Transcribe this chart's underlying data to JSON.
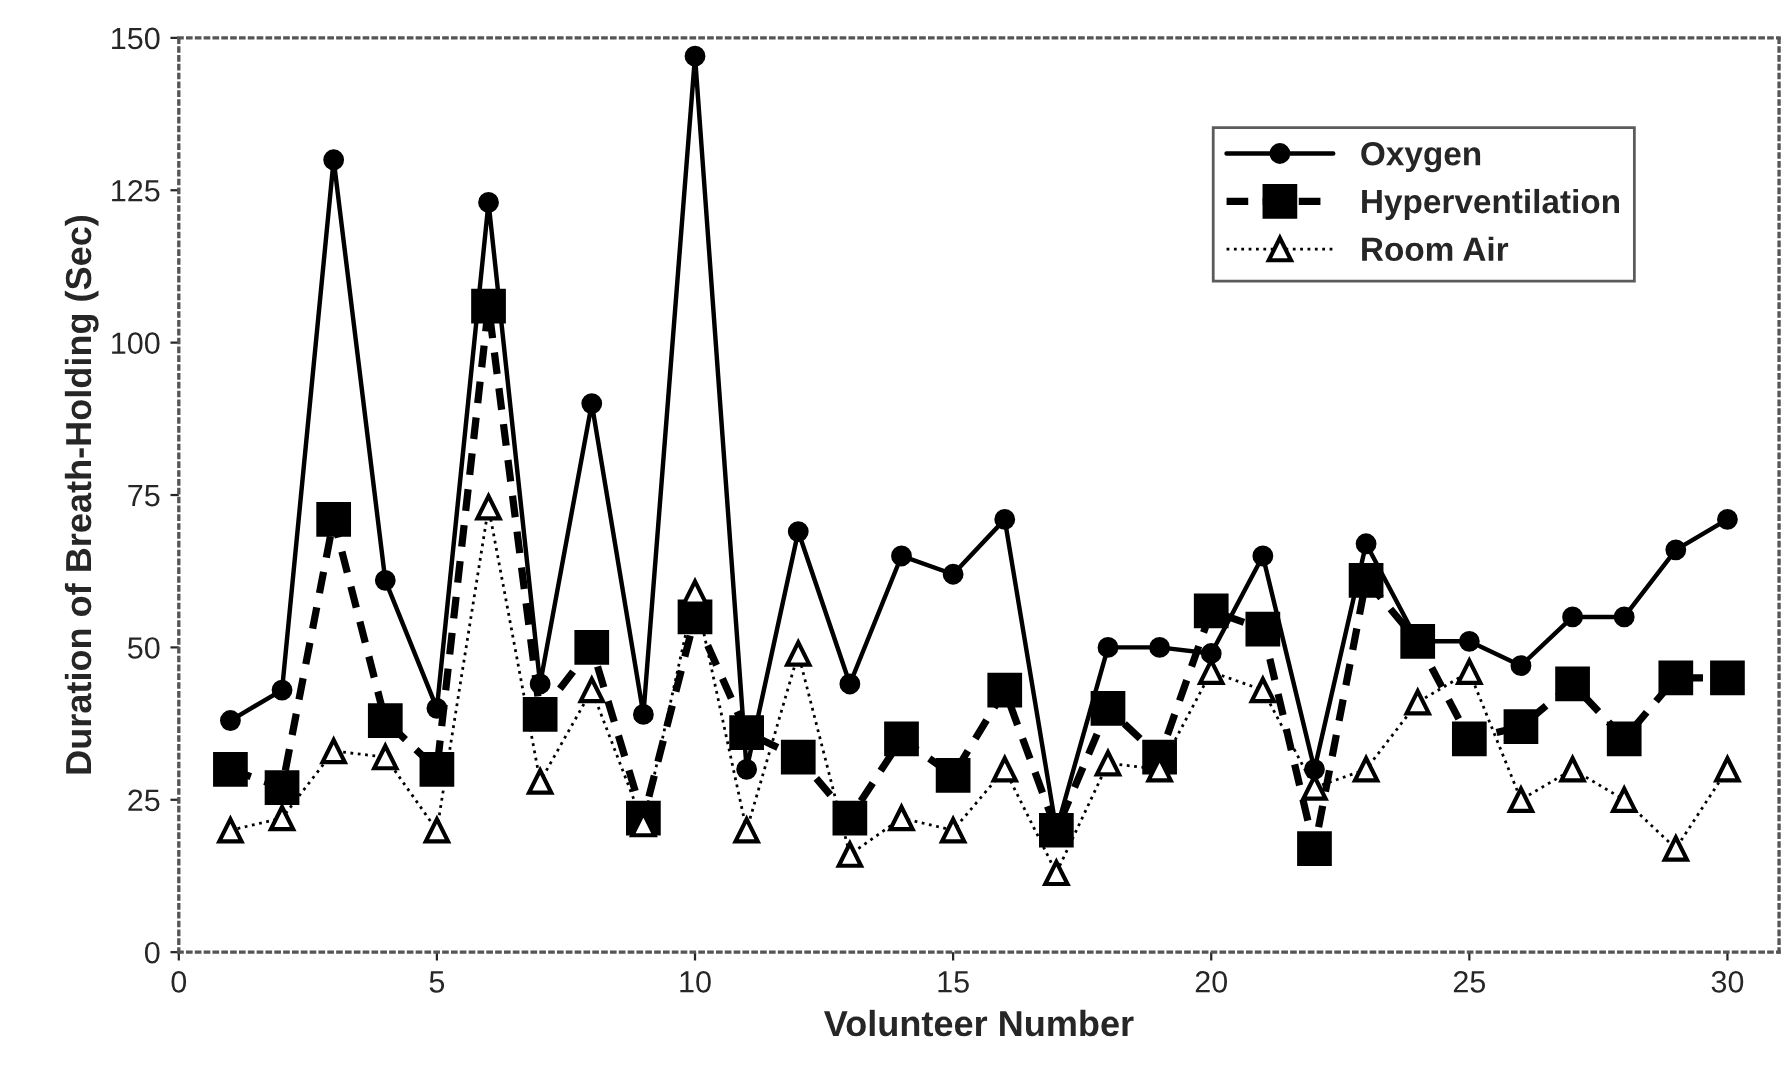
{
  "chart_data": {
    "type": "line",
    "xlabel": "Volunteer Number",
    "ylabel": "Duration of Breath-Holding (Sec)",
    "x": [
      1,
      2,
      3,
      4,
      5,
      6,
      7,
      8,
      9,
      10,
      11,
      12,
      13,
      14,
      15,
      16,
      17,
      18,
      19,
      20,
      21,
      22,
      23,
      24,
      25,
      26,
      27,
      28,
      29,
      30
    ],
    "series": [
      {
        "name": "Oxygen",
        "color": "#000000",
        "marker": "circle",
        "line_style": "solid",
        "values": [
          38,
          43,
          130,
          61,
          40,
          123,
          44,
          90,
          39,
          147,
          30,
          69,
          44,
          65,
          62,
          71,
          20,
          50,
          50,
          49,
          65,
          30,
          67,
          51,
          51,
          47,
          55,
          55,
          66,
          71
        ]
      },
      {
        "name": "Hyperventilation",
        "color": "#000000",
        "marker": "square",
        "line_style": "dashed",
        "values": [
          30,
          27,
          71,
          38,
          30,
          106,
          39,
          50,
          22,
          55,
          36,
          32,
          22,
          35,
          29,
          43,
          20,
          40,
          32,
          56,
          53,
          17,
          61,
          51,
          35,
          37,
          44,
          35,
          45,
          45
        ]
      },
      {
        "name": "Room Air",
        "color": "#000000",
        "marker": "triangle",
        "line_style": "dotted",
        "values": [
          20,
          22,
          33,
          32,
          20,
          73,
          28,
          43,
          21,
          59,
          20,
          49,
          16,
          22,
          20,
          30,
          13,
          31,
          30,
          46,
          43,
          27,
          30,
          41,
          46,
          25,
          30,
          25,
          17,
          30
        ]
      }
    ],
    "xlim": [
      0,
      31
    ],
    "xticks": [
      0,
      5,
      10,
      15,
      20,
      25,
      30
    ],
    "ylim": [
      0,
      150
    ],
    "yticks": [
      0,
      25,
      50,
      75,
      100,
      125,
      150
    ],
    "grid": false,
    "legend": "top right"
  }
}
